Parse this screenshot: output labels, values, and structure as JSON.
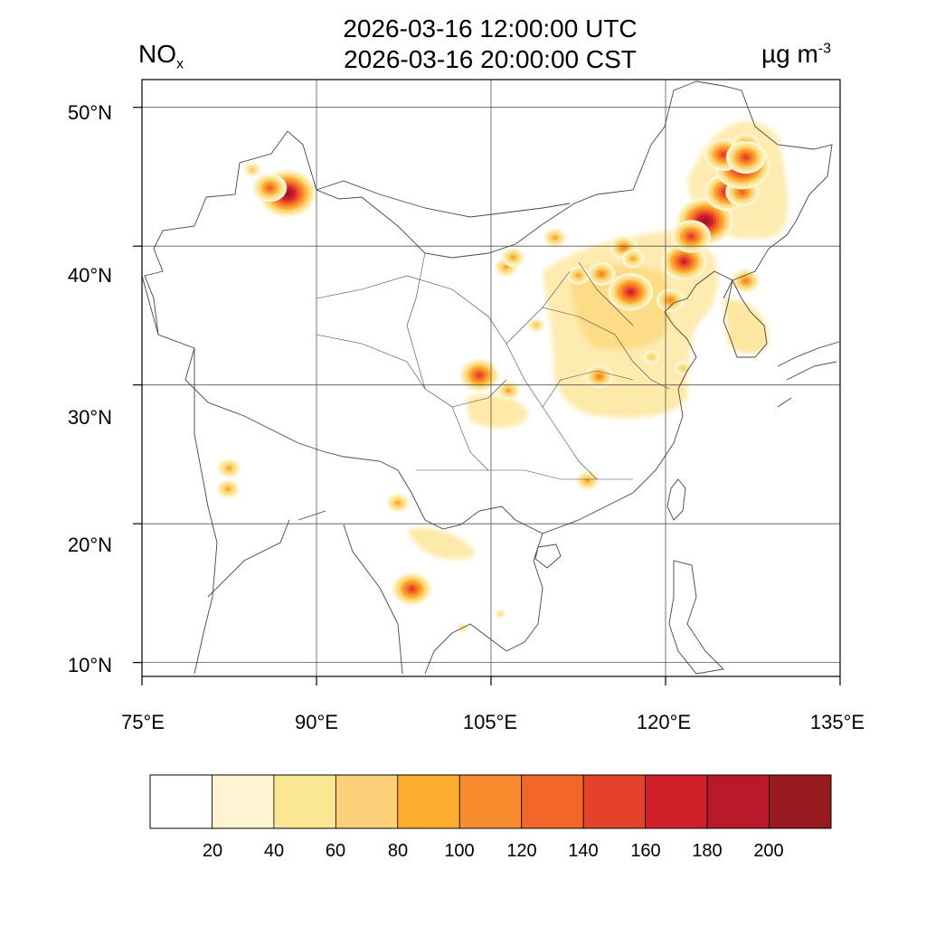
{
  "title": {
    "line1": "2026-03-16 12:00:00 UTC",
    "line2": "2026-03-16 20:00:00 CST"
  },
  "variable": {
    "base": "NO",
    "sub": "x"
  },
  "unit": {
    "base": "µg m",
    "sup": "-3"
  },
  "map": {
    "lon_range": [
      75,
      135
    ],
    "lat_range": [
      9,
      52
    ],
    "lon_ticks": [
      "75°E",
      "90°E",
      "105°E",
      "120°E",
      "135°E"
    ],
    "lat_ticks": [
      "50°N",
      "40°N",
      "30°N",
      "20°N",
      "10°N"
    ],
    "grid": true
  },
  "colorbar": {
    "colors": [
      "#ffffff",
      "#fef4d2",
      "#fbe793",
      "#fdd07a",
      "#fdae2f",
      "#f98c2e",
      "#f26628",
      "#e4432a",
      "#d0212a",
      "#b81a2a",
      "#961a1e"
    ],
    "tick_labels": [
      "20",
      "40",
      "60",
      "80",
      "100",
      "120",
      "140",
      "160",
      "180",
      "200"
    ]
  },
  "chart_data": {
    "type": "heatmap",
    "title": "2026-03-16 12:00:00 UTC / 2026-03-16 20:00:00 CST",
    "variable": "NOx",
    "unit": "µg m-3",
    "levels": [
      20,
      40,
      60,
      80,
      100,
      120,
      140,
      160,
      180,
      200
    ],
    "xlim": [
      75,
      135
    ],
    "ylim": [
      9,
      52
    ],
    "hotspots": [
      {
        "lon": 87.5,
        "lat": 43.8,
        "value": 210
      },
      {
        "lon": 86.0,
        "lat": 44.2,
        "value": 120
      },
      {
        "lon": 84.5,
        "lat": 45.5,
        "value": 60
      },
      {
        "lon": 106.3,
        "lat": 38.5,
        "value": 90
      },
      {
        "lon": 106.9,
        "lat": 39.2,
        "value": 80
      },
      {
        "lon": 104.0,
        "lat": 30.7,
        "value": 150
      },
      {
        "lon": 106.5,
        "lat": 29.6,
        "value": 90
      },
      {
        "lon": 113.3,
        "lat": 23.1,
        "value": 80
      },
      {
        "lon": 116.4,
        "lat": 39.9,
        "value": 110
      },
      {
        "lon": 117.2,
        "lat": 39.1,
        "value": 90
      },
      {
        "lon": 114.5,
        "lat": 38.0,
        "value": 110
      },
      {
        "lon": 117.0,
        "lat": 36.7,
        "value": 170
      },
      {
        "lon": 120.4,
        "lat": 36.1,
        "value": 100
      },
      {
        "lon": 121.6,
        "lat": 38.9,
        "value": 160
      },
      {
        "lon": 123.4,
        "lat": 41.8,
        "value": 200
      },
      {
        "lon": 122.2,
        "lat": 40.7,
        "value": 150
      },
      {
        "lon": 125.3,
        "lat": 43.9,
        "value": 170
      },
      {
        "lon": 126.6,
        "lat": 43.9,
        "value": 130
      },
      {
        "lon": 126.6,
        "lat": 45.8,
        "value": 210
      },
      {
        "lon": 125.0,
        "lat": 46.6,
        "value": 150
      },
      {
        "lon": 126.9,
        "lat": 47.3,
        "value": 110
      },
      {
        "lon": 126.9,
        "lat": 46.4,
        "value": 140
      },
      {
        "lon": 126.9,
        "lat": 37.5,
        "value": 110
      },
      {
        "lon": 114.3,
        "lat": 30.6,
        "value": 100
      },
      {
        "lon": 118.8,
        "lat": 32.0,
        "value": 70
      },
      {
        "lon": 121.5,
        "lat": 31.2,
        "value": 70
      },
      {
        "lon": 112.5,
        "lat": 37.9,
        "value": 90
      },
      {
        "lon": 110.5,
        "lat": 40.6,
        "value": 80
      },
      {
        "lon": 108.9,
        "lat": 34.3,
        "value": 60
      },
      {
        "lon": 82.5,
        "lat": 24.0,
        "value": 90
      },
      {
        "lon": 82.4,
        "lat": 22.5,
        "value": 80
      },
      {
        "lon": 97.0,
        "lat": 21.5,
        "value": 80
      },
      {
        "lon": 98.2,
        "lat": 15.3,
        "value": 140
      },
      {
        "lon": 102.6,
        "lat": 12.5,
        "value": 50
      },
      {
        "lon": 105.8,
        "lat": 13.5,
        "value": 50
      }
    ]
  }
}
